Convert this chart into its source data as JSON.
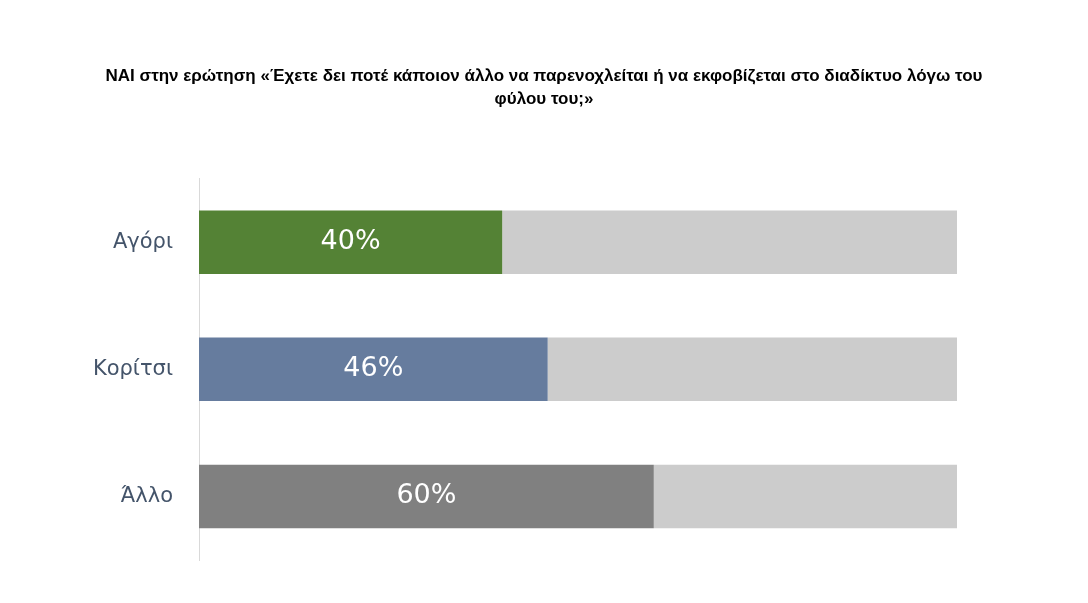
{
  "chart_data": {
    "type": "bar",
    "orientation": "horizontal",
    "stacked": true,
    "title": "NAI στην ερώτηση «Έχετε δει ποτέ κάποιον άλλο να παρενοχλείται ή να εκφοβίζεται στο διαδίκτυο λόγω του φύλου του;»",
    "categories": [
      "Αγόρι",
      "Κορίτσι",
      "Άλλο"
    ],
    "series": [
      {
        "colors": [
          "#548235",
          "#667c9e",
          "#808080"
        ],
        "values": [
          40,
          46,
          60
        ],
        "value_labels": [
          "40%",
          "46%",
          "60%"
        ]
      },
      {
        "color": "#cccccc",
        "values": [
          60,
          54,
          40
        ]
      }
    ],
    "xlim": [
      0,
      100
    ],
    "tick_labels": "y"
  }
}
